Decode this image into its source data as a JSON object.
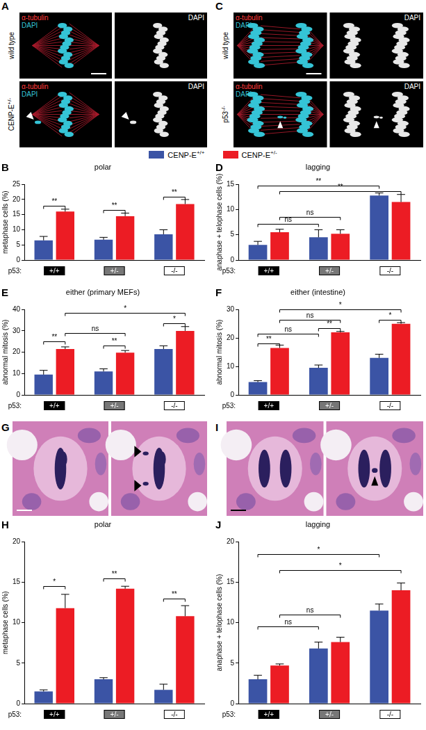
{
  "image_panels": [
    {
      "panel": "A",
      "rows": [
        "wild type",
        "CENP-E+/-"
      ],
      "channels": [
        "α-tubulin",
        "DAPI"
      ],
      "gray_channel": "DAPI"
    },
    {
      "panel": "C",
      "rows": [
        "wild type",
        "p53-/-"
      ],
      "channels": [
        "α-tubulin",
        "DAPI"
      ],
      "gray_channel": "DAPI"
    },
    {
      "panel": "G"
    },
    {
      "panel": "I"
    }
  ],
  "chart_data": [
    {
      "panel": "B",
      "type": "bar",
      "title": "polar",
      "y_label": "metaphase cells (%)",
      "x_label": "p53:",
      "categories": [
        "+/+",
        "+/-",
        "-/-"
      ],
      "series": [
        {
          "name": "CENP-E+/+",
          "color": "#3b54a5",
          "values": [
            6.5,
            6.7,
            8.5
          ],
          "errors": [
            1.3,
            0.8,
            1.5
          ]
        },
        {
          "name": "CENP-E+/-",
          "color": "#ec1c24",
          "values": [
            16,
            14.5,
            18.5
          ],
          "errors": [
            0.8,
            1.0,
            1.5
          ]
        }
      ],
      "ylim": [
        0,
        25
      ],
      "yticks": [
        0,
        5,
        10,
        15,
        20,
        25
      ],
      "grid": false,
      "significance": [
        {
          "label": "**",
          "from": [
            0,
            0
          ],
          "to": [
            0,
            1
          ],
          "y": 18
        },
        {
          "label": "**",
          "from": [
            1,
            0
          ],
          "to": [
            1,
            1
          ],
          "y": 16.5
        },
        {
          "label": "**",
          "from": [
            2,
            0
          ],
          "to": [
            2,
            1
          ],
          "y": 21
        }
      ]
    },
    {
      "panel": "D",
      "type": "bar",
      "title": "lagging",
      "y_label": "anaphase + telophase cells (%)",
      "x_label": "p53:",
      "categories": [
        "+/+",
        "+/-",
        "-/-"
      ],
      "series": [
        {
          "name": "CENP-E+/+",
          "color": "#3b54a5",
          "values": [
            3,
            4.5,
            12.8
          ],
          "errors": [
            0.7,
            1.5,
            0.5
          ]
        },
        {
          "name": "CENP-E+/-",
          "color": "#ec1c24",
          "values": [
            5.5,
            5.2,
            11.5
          ],
          "errors": [
            0.6,
            0.8,
            1.5
          ]
        }
      ],
      "ylim": [
        0,
        15
      ],
      "yticks": [
        0,
        5,
        10,
        15
      ],
      "grid": false,
      "significance": [
        {
          "label": "**",
          "from": [
            0,
            0
          ],
          "to": [
            2,
            0
          ],
          "y": 14.8
        },
        {
          "label": "**",
          "from": [
            0,
            1
          ],
          "to": [
            2,
            1
          ],
          "y": 13.6
        },
        {
          "label": "ns",
          "from": [
            0,
            0
          ],
          "to": [
            1,
            0
          ],
          "y": 7.2
        },
        {
          "label": "ns",
          "from": [
            0,
            1
          ],
          "to": [
            1,
            1
          ],
          "y": 8.6
        }
      ]
    },
    {
      "panel": "E",
      "type": "bar",
      "title": "either (primary MEFs)",
      "y_label": "abnormal mitosis (%)",
      "x_label": "p53:",
      "categories": [
        "+/+",
        "+/-",
        "-/-"
      ],
      "series": [
        {
          "name": "CENP-E+/+",
          "color": "#3b54a5",
          "values": [
            9.5,
            11,
            21.5
          ],
          "errors": [
            2,
            1.2,
            1.5
          ]
        },
        {
          "name": "CENP-E+/-",
          "color": "#ec1c24",
          "values": [
            21.5,
            19.8,
            30
          ],
          "errors": [
            1,
            1,
            2
          ]
        }
      ],
      "ylim": [
        0,
        40
      ],
      "yticks": [
        0,
        10,
        20,
        30,
        40
      ],
      "grid": false,
      "significance": [
        {
          "label": "**",
          "from": [
            0,
            0
          ],
          "to": [
            0,
            1
          ],
          "y": 25
        },
        {
          "label": "**",
          "from": [
            1,
            0
          ],
          "to": [
            1,
            1
          ],
          "y": 23
        },
        {
          "label": "*",
          "from": [
            2,
            0
          ],
          "to": [
            2,
            1
          ],
          "y": 33.5
        },
        {
          "label": "ns",
          "from": [
            0,
            1
          ],
          "to": [
            1,
            1
          ],
          "y": 29
        },
        {
          "label": "*",
          "from": [
            0,
            1
          ],
          "to": [
            2,
            1
          ],
          "y": 38.5
        }
      ]
    },
    {
      "panel": "F",
      "type": "bar",
      "title": "either (intestine)",
      "y_label": "abnormal mitosis (%)",
      "x_label": "p53:",
      "categories": [
        "+/+",
        "+/-",
        "-/-"
      ],
      "series": [
        {
          "name": "CENP-E+/+",
          "color": "#3b54a5",
          "values": [
            4.5,
            9.5,
            13
          ],
          "errors": [
            0.5,
            1,
            1.3
          ]
        },
        {
          "name": "CENP-E+/-",
          "color": "#ec1c24",
          "values": [
            16.5,
            22,
            25
          ],
          "errors": [
            1,
            0.3,
            0.4
          ]
        }
      ],
      "ylim": [
        0,
        30
      ],
      "yticks": [
        0,
        10,
        20,
        30
      ],
      "grid": false,
      "significance": [
        {
          "label": "**",
          "from": [
            0,
            0
          ],
          "to": [
            0,
            1
          ],
          "y": 18
        },
        {
          "label": "**",
          "from": [
            1,
            0
          ],
          "to": [
            1,
            1
          ],
          "y": 23.5
        },
        {
          "label": "*",
          "from": [
            2,
            0
          ],
          "to": [
            2,
            1
          ],
          "y": 26.5
        },
        {
          "label": "ns",
          "from": [
            0,
            0
          ],
          "to": [
            1,
            0
          ],
          "y": 21.5
        },
        {
          "label": "ns",
          "from": [
            0,
            1
          ],
          "to": [
            1,
            1
          ],
          "y": 26.5
        },
        {
          "label": "*",
          "from": [
            0,
            1
          ],
          "to": [
            2,
            1
          ],
          "y": 30
        }
      ]
    },
    {
      "panel": "H",
      "type": "bar",
      "title": "polar",
      "y_label": "metaphase cells (%)",
      "x_label": "p53:",
      "categories": [
        "+/+",
        "+/-",
        "-/-"
      ],
      "series": [
        {
          "name": "CENP-E+/+",
          "color": "#3b54a5",
          "values": [
            1.5,
            3,
            1.7
          ],
          "errors": [
            0.2,
            0.2,
            0.7
          ]
        },
        {
          "name": "CENP-E+/-",
          "color": "#ec1c24",
          "values": [
            11.8,
            14.2,
            10.8
          ],
          "errors": [
            1.7,
            0.3,
            1.3
          ]
        }
      ],
      "ylim": [
        0,
        20
      ],
      "yticks": [
        0,
        5,
        10,
        15,
        20
      ],
      "grid": false,
      "significance": [
        {
          "label": "*",
          "from": [
            0,
            0
          ],
          "to": [
            0,
            1
          ],
          "y": 14.5
        },
        {
          "label": "**",
          "from": [
            1,
            0
          ],
          "to": [
            1,
            1
          ],
          "y": 15.5
        },
        {
          "label": "**",
          "from": [
            2,
            0
          ],
          "to": [
            2,
            1
          ],
          "y": 13
        }
      ]
    },
    {
      "panel": "J",
      "type": "bar",
      "title": "lagging",
      "y_label": "anaphase + telophase cells (%)",
      "x_label": "p53:",
      "categories": [
        "+/+",
        "+/-",
        "-/-"
      ],
      "series": [
        {
          "name": "CENP-E+/+",
          "color": "#3b54a5",
          "values": [
            3,
            6.8,
            11.5
          ],
          "errors": [
            0.5,
            0.8,
            0.8
          ]
        },
        {
          "name": "CENP-E+/-",
          "color": "#ec1c24",
          "values": [
            4.7,
            7.6,
            14
          ],
          "errors": [
            0.2,
            0.6,
            0.9
          ]
        }
      ],
      "ylim": [
        0,
        20
      ],
      "yticks": [
        0,
        5,
        10,
        15,
        20
      ],
      "grid": false,
      "significance": [
        {
          "label": "*",
          "from": [
            0,
            0
          ],
          "to": [
            2,
            0
          ],
          "y": 18.5
        },
        {
          "label": "*",
          "from": [
            0,
            1
          ],
          "to": [
            2,
            1
          ],
          "y": 16.5
        },
        {
          "label": "ns",
          "from": [
            0,
            0
          ],
          "to": [
            1,
            0
          ],
          "y": 9.5
        },
        {
          "label": "ns",
          "from": [
            0,
            1
          ],
          "to": [
            1,
            1
          ],
          "y": 11
        }
      ]
    }
  ]
}
